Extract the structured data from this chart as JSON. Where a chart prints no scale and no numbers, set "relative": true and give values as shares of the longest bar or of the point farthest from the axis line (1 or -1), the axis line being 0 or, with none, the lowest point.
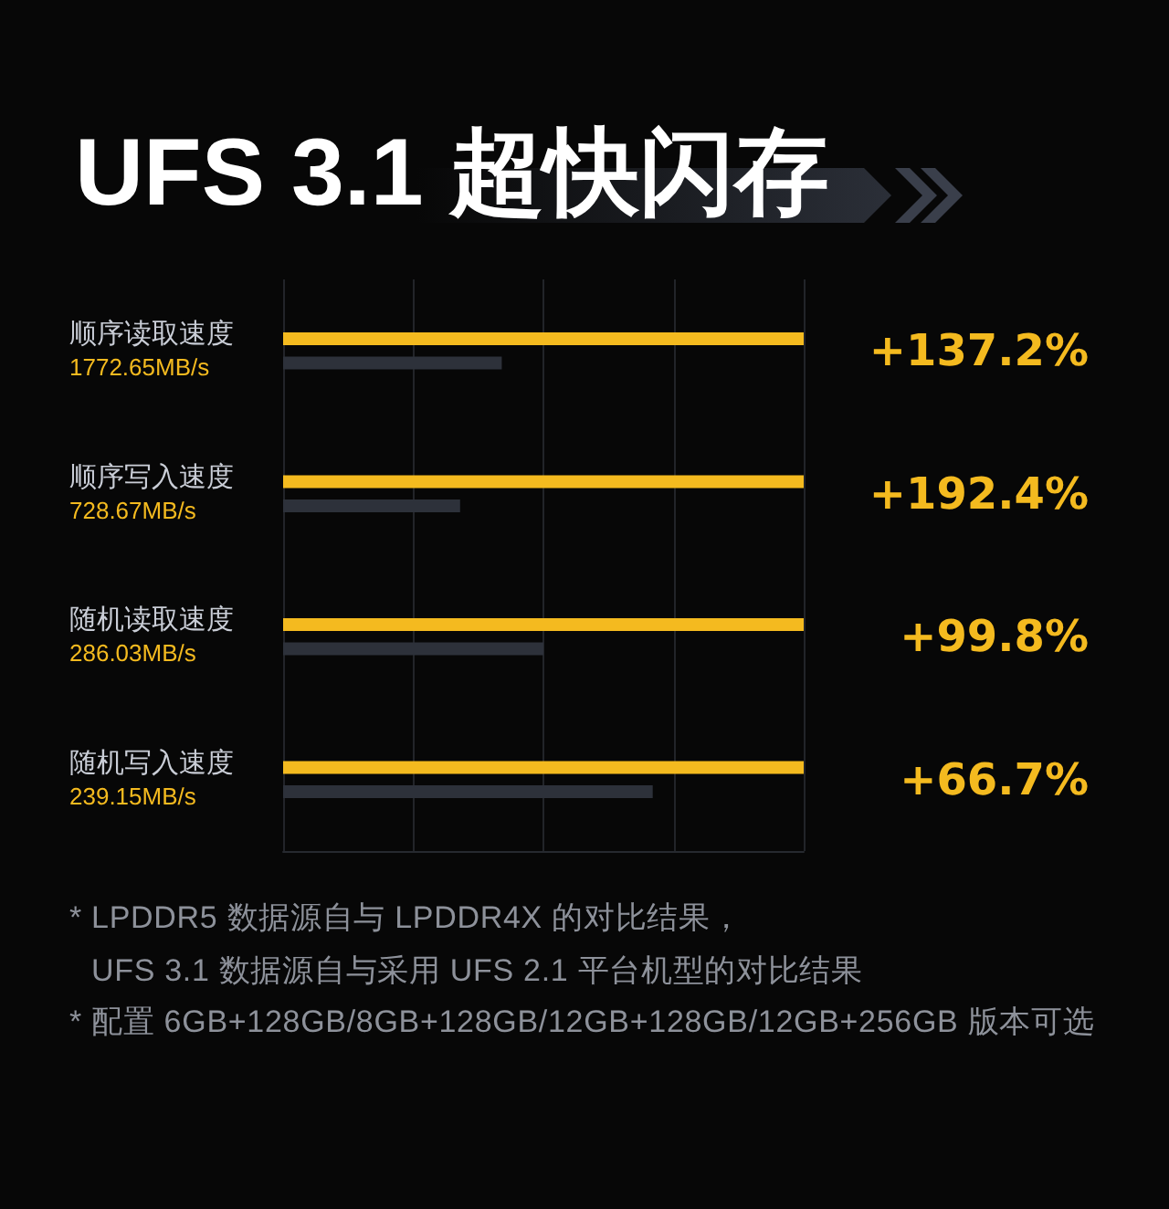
{
  "chart_data": {
    "type": "bar",
    "orientation": "horizontal",
    "relative": true,
    "title": "UFS 3.1 超快闪存",
    "categories": [
      "顺序读取速度\n1772.65MB/s",
      "顺序写入速度\n728.67MB/s",
      "随机读取速度\n286.03MB/s",
      "随机写入速度\n239.15MB/s"
    ],
    "series": [
      {
        "color": "#f4ba1f",
        "values": [
          1,
          1,
          1,
          1
        ]
      },
      {
        "color": "#2d313a",
        "values": [
          0.42,
          0.34,
          0.5,
          0.71
        ]
      }
    ],
    "grid": "x",
    "annotations": [
      "+137.2%",
      "+192.4%",
      "+99.8%",
      "+66.7%",
      "* LPDDR5 数据源自与 LPDDR4X 的对比结果，\nUFS 3.1 数据源自与采用 UFS 2.1 平台机型的对比结果",
      "* 配置 6GB+128GB/8GB+128GB/12GB+128GB/12GB+256GB 版本可选"
    ]
  }
}
